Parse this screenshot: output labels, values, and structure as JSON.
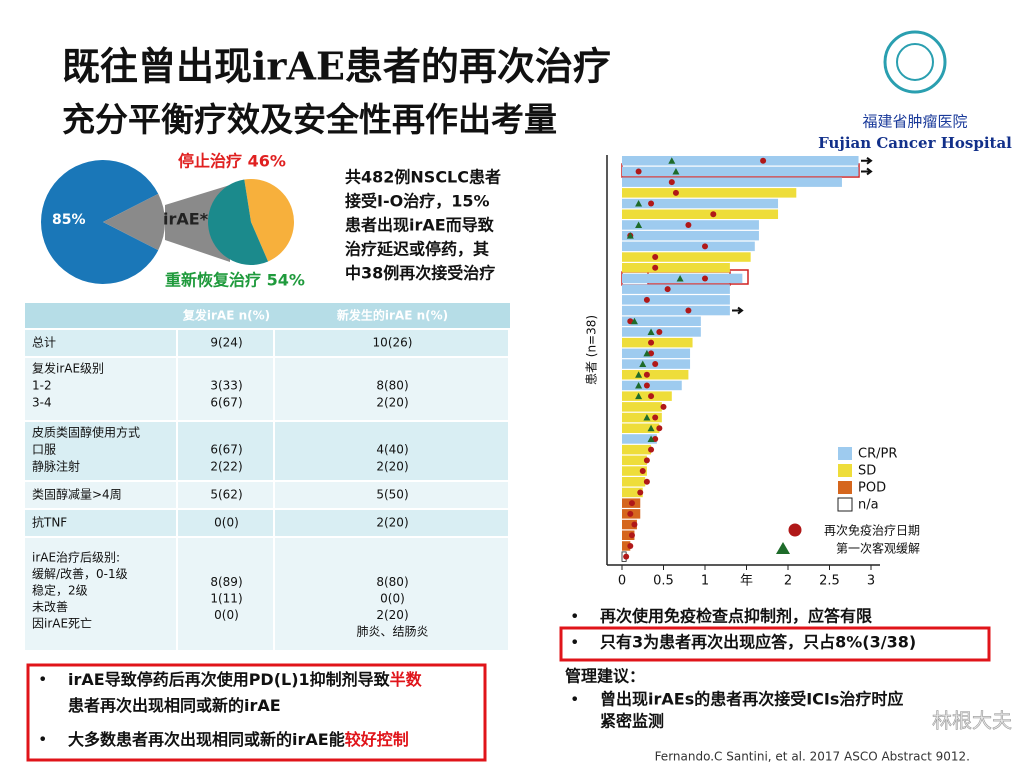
{
  "header": {
    "title": "既往曾出现irAE患者的再次治疗",
    "subtitle": "充分平衡疗效及安全性再作出考量",
    "hospital_cn": "福建省肿瘤医院",
    "hospital_en": "Fujian Cancer Hospital"
  },
  "pies": {
    "main": {
      "slices": [
        {
          "label": "85%",
          "value": 85,
          "color": "#1a77b8"
        },
        {
          "value": 15,
          "color": "#8a8a8a"
        }
      ],
      "center_label": "irAE*"
    },
    "detail": {
      "slices": [
        {
          "label": "停止治疗 46%",
          "value": 46,
          "color": "#f7b03c",
          "label_color": "#e02020"
        },
        {
          "label": "重新恢复治疗 54%",
          "value": 54,
          "color": "#1b8a8c",
          "label_color": "#1f9a3c"
        }
      ]
    }
  },
  "summary": [
    "共482例NSCLC患者",
    "接受I-O治疗，15%",
    "患者出现irAE而导致",
    "治疗延迟或停药，其",
    "中38例再次接受治疗"
  ],
  "table": {
    "headers": [
      "复发irAE n(%)",
      "新发生的irAE n(%)"
    ],
    "rows": [
      [
        [
          "总计"
        ],
        [
          "9(24)"
        ],
        [
          "10(26)"
        ]
      ],
      [
        [
          "复发irAE级别",
          "  1-2",
          "  3-4"
        ],
        [
          "3(33)",
          "6(67)"
        ],
        [
          "8(80)",
          "2(20)"
        ]
      ],
      [
        [
          "皮质类固醇使用方式",
          "  口服",
          "  静脉注射"
        ],
        [
          "6(67)",
          "2(22)"
        ],
        [
          "4(40)",
          "2(20)"
        ]
      ],
      [
        [
          "类固醇减量>4周"
        ],
        [
          "5(62)"
        ],
        [
          "5(50)"
        ]
      ],
      [
        [
          "抗TNF"
        ],
        [
          "0(0)"
        ],
        [
          "2(20)"
        ]
      ],
      [
        [
          "irAE治疗后级别:",
          "  缓解/改善，0-1级",
          "  稳定，2级",
          "  未改善",
          "  因irAE死亡"
        ],
        [
          "8(89)",
          "1(11)",
          "0(0)"
        ],
        [
          "8(80)",
          "0(0)",
          "2(20)",
          "肺炎、结肠炎"
        ]
      ]
    ]
  },
  "left_box": [
    [
      "irAE导致停药后再次使用PD(L)1抑制剂导致",
      "半数"
    ],
    [
      "患者再次出现相同或新的irAE"
    ],
    [
      "大多数患者再次出现相同或新的irAE能",
      "较好控制"
    ]
  ],
  "swimmer": {
    "y_label": "患者 (n=38)",
    "xlim": [
      0,
      3
    ],
    "xticks": [
      0,
      0.5,
      1,
      {
        "value": 1.5,
        "label": "年"
      },
      2,
      2.5,
      3
    ],
    "legend": [
      {
        "name": "CR/PR",
        "color": "#9ecbef"
      },
      {
        "name": "SD",
        "color": "#eedd3a"
      },
      {
        "name": "POD",
        "color": "#d5661d"
      },
      {
        "name": "n/a",
        "color": "#ffffff"
      }
    ],
    "markers": [
      {
        "name": "再次免疫治疗日期",
        "color": "#b01818"
      },
      {
        "name": "第一次客观缓解",
        "color": "#1e6b2a"
      }
    ],
    "values": [
      2.85,
      2.85,
      2.65,
      2.1,
      1.88,
      1.88,
      1.65,
      1.65,
      1.6,
      1.55,
      1.3,
      1.45,
      1.3,
      1.3,
      1.3,
      0.95,
      0.95,
      0.85,
      0.82,
      0.82,
      0.8,
      0.72,
      0.6,
      0.48,
      0.48,
      0.45,
      0.42,
      0.35,
      0.3,
      0.3,
      0.28,
      0.25,
      0.22,
      0.22,
      0.18,
      0.15,
      0.1,
      0.05
    ],
    "response": [
      "CR/PR",
      "CR/PR",
      "CR/PR",
      "SD",
      "CR/PR",
      "SD",
      "CR/PR",
      "CR/PR",
      "CR/PR",
      "SD",
      "SD",
      "CR/PR",
      "CR/PR",
      "CR/PR",
      "CR/PR",
      "CR/PR",
      "CR/PR",
      "SD",
      "CR/PR",
      "CR/PR",
      "SD",
      "CR/PR",
      "SD",
      "SD",
      "SD",
      "SD",
      "CR/PR",
      "SD",
      "SD",
      "SD",
      "SD",
      "SD",
      "POD",
      "POD",
      "POD",
      "POD",
      "POD",
      "n/a"
    ],
    "retreatment": [
      1.7,
      0.2,
      0.6,
      0.65,
      0.35,
      1.1,
      0.8,
      0.1,
      1.0,
      0.4,
      0.4,
      1.0,
      0.55,
      0.3,
      0.8,
      0.1,
      0.45,
      0.35,
      0.35,
      0.4,
      0.3,
      0.3,
      0.35,
      0.5,
      0.4,
      0.45,
      0.4,
      0.35,
      0.3,
      0.25,
      0.3,
      0.22,
      0.12,
      0.1,
      0.15,
      0.12,
      0.1,
      0.05
    ],
    "response_time": [
      0.6,
      0.65,
      null,
      null,
      0.2,
      null,
      0.2,
      0.1,
      null,
      null,
      null,
      0.7,
      null,
      null,
      null,
      0.15,
      0.35,
      null,
      0.3,
      0.25,
      0.2,
      0.2,
      0.2,
      null,
      0.3,
      0.35,
      0.35,
      null,
      null,
      null,
      null,
      null,
      null,
      null,
      null,
      null,
      null,
      null
    ]
  },
  "right_notes": {
    "bullet1": "再次使用免疫检查点抑制剂，应答有限",
    "highlight": "只有3为患者再次出现应答，只占8%(3/38)",
    "advice_title": "管理建议：",
    "advice": [
      "曾出现irAEs的患者再次接受ICIs治疗时应",
      "紧密监测"
    ]
  },
  "citation": "Fernando.C Santini, et al. 2017 ASCO Abstract 9012.",
  "watermark": "林根大夫"
}
